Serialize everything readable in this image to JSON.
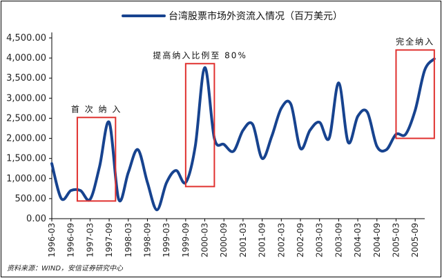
{
  "chart_data": {
    "type": "line",
    "title": "",
    "xlabel": "",
    "ylabel": "",
    "ylim": [
      0,
      4500
    ],
    "y_ticks": [
      0,
      500,
      1000,
      1500,
      2000,
      2500,
      3000,
      3500,
      4000,
      4500
    ],
    "y_tick_labels": [
      "0.00",
      "500.00",
      "1,000.00",
      "1,500.00",
      "2,000.00",
      "2,500.00",
      "3,000.00",
      "3,500.00",
      "4,000.00",
      "4,500.00"
    ],
    "x_tick_labels": [
      "1996-03",
      "1996-09",
      "1997-03",
      "1997-09",
      "1998-03",
      "1998-09",
      "1999-03",
      "1999-09",
      "2000-03",
      "2000-09",
      "2001-03",
      "2001-09",
      "2002-03",
      "2002-09",
      "2003-03",
      "2003-09",
      "2004-03",
      "2004-09",
      "2005-03",
      "2005-09"
    ],
    "x_start": "1996-03",
    "x_end": "2005-12",
    "grid": false,
    "legend_position": "top",
    "series": [
      {
        "name": "台湾股票市场外资流入情况（百万美元）",
        "color": "#17438f",
        "points": [
          [
            "1996-03",
            1370
          ],
          [
            "1996-06",
            500
          ],
          [
            "1996-09",
            700
          ],
          [
            "1996-12",
            700
          ],
          [
            "1997-03",
            480
          ],
          [
            "1997-06",
            1300
          ],
          [
            "1997-09",
            2400
          ],
          [
            "1997-12",
            480
          ],
          [
            "1998-03",
            1150
          ],
          [
            "1998-06",
            1720
          ],
          [
            "1998-09",
            900
          ],
          [
            "1998-12",
            220
          ],
          [
            "1999-03",
            900
          ],
          [
            "1999-06",
            1200
          ],
          [
            "1999-09",
            900
          ],
          [
            "1999-12",
            1800
          ],
          [
            "2000-03",
            3760
          ],
          [
            "2000-06",
            2000
          ],
          [
            "2000-09",
            1850
          ],
          [
            "2000-12",
            1680
          ],
          [
            "2001-03",
            2200
          ],
          [
            "2001-06",
            2350
          ],
          [
            "2001-09",
            1500
          ],
          [
            "2001-12",
            2050
          ],
          [
            "2002-03",
            2750
          ],
          [
            "2002-06",
            2850
          ],
          [
            "2002-09",
            1750
          ],
          [
            "2002-12",
            2200
          ],
          [
            "2003-03",
            2400
          ],
          [
            "2003-06",
            2000
          ],
          [
            "2003-09",
            3380
          ],
          [
            "2003-12",
            1900
          ],
          [
            "2004-03",
            2550
          ],
          [
            "2004-06",
            2650
          ],
          [
            "2004-09",
            1800
          ],
          [
            "2004-12",
            1720
          ],
          [
            "2005-03",
            2100
          ],
          [
            "2005-06",
            2100
          ],
          [
            "2005-09",
            2700
          ],
          [
            "2005-12",
            3700
          ],
          [
            "2006-03",
            3980
          ]
        ]
      }
    ],
    "annotations": [
      {
        "text": "首 次 纳 入",
        "start": "1996-11",
        "end": "1997-11",
        "ymin": 440,
        "ymax": 2520
      },
      {
        "text": "提高纳入比例至 80%",
        "start": "1999-09",
        "end": "2000-06",
        "ymin": 800,
        "ymax": 3860
      },
      {
        "text": "完全纳入",
        "start": "2005-03",
        "end": "2006-03",
        "ymin": 2000,
        "ymax": 4200
      }
    ],
    "source": "资料来源：WIND，安信证券研究中心"
  }
}
